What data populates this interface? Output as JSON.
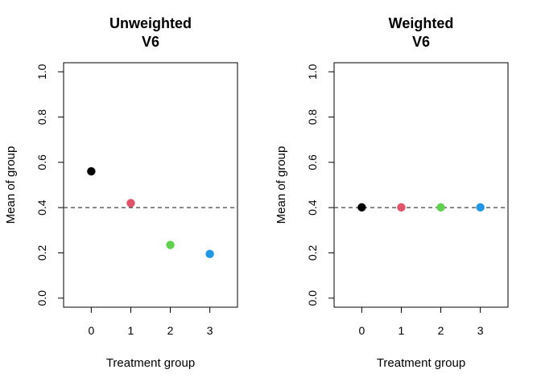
{
  "chart_data": [
    {
      "type": "scatter",
      "title_line1": "Unweighted",
      "title_line2": "V6",
      "xlabel": "Treatment group",
      "ylabel": "Mean of group",
      "x": [
        0,
        1,
        2,
        3
      ],
      "values": [
        0.56,
        0.42,
        0.235,
        0.195
      ],
      "colors": [
        "#000000",
        "#DF536B",
        "#61D04F",
        "#2297E6"
      ],
      "xticks": [
        "0",
        "1",
        "2",
        "3"
      ],
      "yticks": [
        "0.0",
        "0.2",
        "0.4",
        "0.6",
        "0.8",
        "1.0"
      ],
      "xlim": [
        -0.7,
        3.7
      ],
      "ylim": [
        -0.04,
        1.04
      ],
      "reference_line": 0.4,
      "grid": false
    },
    {
      "type": "scatter",
      "title_line1": "Weighted",
      "title_line2": "V6",
      "xlabel": "Treatment group",
      "ylabel": "Mean of group",
      "x": [
        0,
        1,
        2,
        3
      ],
      "values": [
        0.401,
        0.401,
        0.401,
        0.401
      ],
      "colors": [
        "#000000",
        "#DF536B",
        "#61D04F",
        "#2297E6"
      ],
      "xticks": [
        "0",
        "1",
        "2",
        "3"
      ],
      "yticks": [
        "0.0",
        "0.2",
        "0.4",
        "0.6",
        "0.8",
        "1.0"
      ],
      "xlim": [
        -0.7,
        3.7
      ],
      "ylim": [
        -0.04,
        1.04
      ],
      "reference_line": 0.4,
      "grid": false
    }
  ]
}
